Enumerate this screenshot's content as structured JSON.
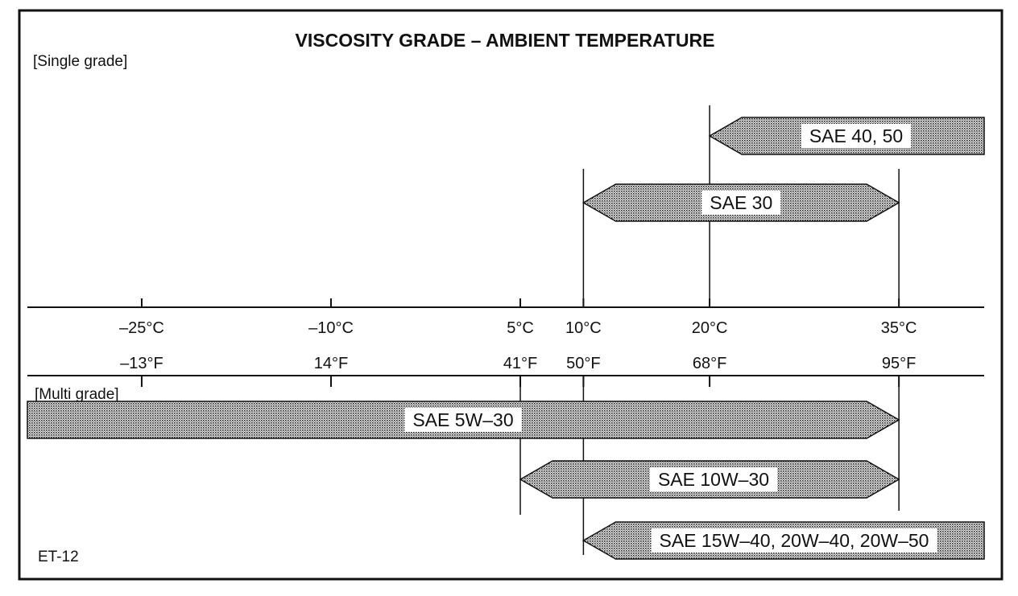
{
  "title": "VISCOSITY GRADE – AMBIENT TEMPERATURE",
  "single_grade_label": "[Single grade]",
  "multi_grade_label": "[Multi grade]",
  "figure_code": "ET-12",
  "colors": {
    "line": "#111111",
    "background": "#ffffff",
    "band_fill": "#8c8c8c",
    "label_background": "#ffffff"
  },
  "temperature_ticks": [
    {
      "c": -25,
      "celsius": "–25°C",
      "fahrenheit": "–13°F"
    },
    {
      "c": -10,
      "celsius": "–10°C",
      "fahrenheit": "14°F"
    },
    {
      "c": 5,
      "celsius": "5°C",
      "fahrenheit": "41°F"
    },
    {
      "c": 10,
      "celsius": "10°C",
      "fahrenheit": "50°F"
    },
    {
      "c": 20,
      "celsius": "20°C",
      "fahrenheit": "68°F"
    },
    {
      "c": 35,
      "celsius": "35°C",
      "fahrenheit": "95°F"
    }
  ],
  "chart_data": {
    "type": "range-bar",
    "x_unit": "°C",
    "xlim": [
      -34,
      40
    ],
    "single_grade": [
      {
        "label": "SAE 40, 50",
        "min_c": 20,
        "max_c": null
      },
      {
        "label": "SAE 30",
        "min_c": 10,
        "max_c": 35
      }
    ],
    "multi_grade": [
      {
        "label": "SAE 5W–30",
        "min_c": null,
        "max_c": 35
      },
      {
        "label": "SAE 10W–30",
        "min_c": 5,
        "max_c": 35
      },
      {
        "label": "SAE 15W–40, 20W–40, 20W–50",
        "min_c": 10,
        "max_c": null
      }
    ]
  }
}
